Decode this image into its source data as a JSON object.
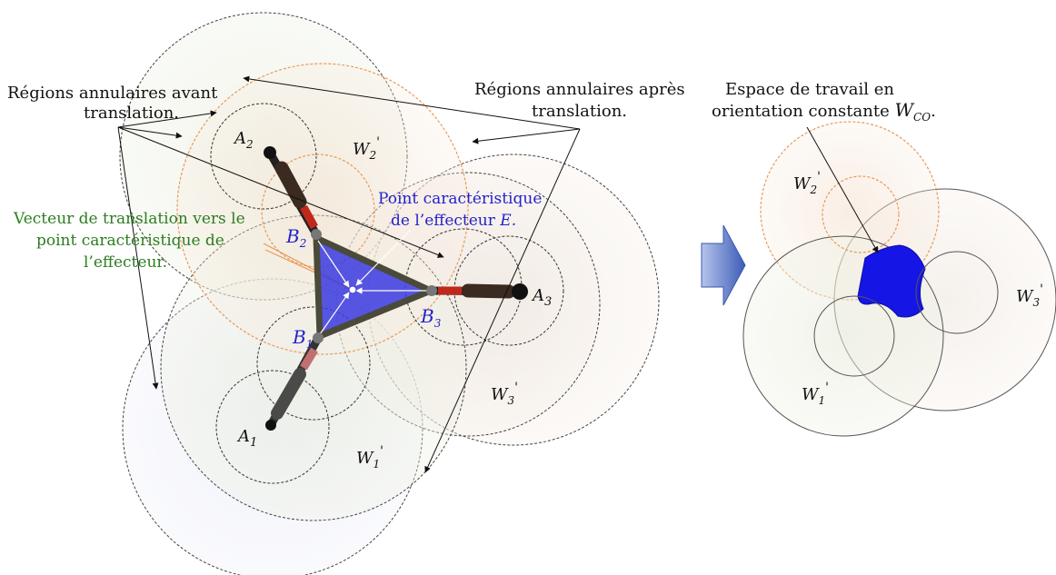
{
  "annotations": {
    "before_line1": "Régions annulaires avant",
    "before_line2": "translation.",
    "after_line1": "Régions annulaires après",
    "after_line2": "translation.",
    "workspace_line1": "Espace de travail en",
    "workspace_line2": "orientation constante",
    "workspace_symbol": "W",
    "workspace_sub": "CO",
    "workspace_end": ".",
    "vector_line1": "Vecteur de translation vers le",
    "vector_line2": "point caractéristique  de",
    "vector_line3": "l’effecteur.",
    "point_line1": "Point caractéristique",
    "point_line2": "de l’effecteur",
    "point_symbol": "E."
  },
  "labels": {
    "A": "A",
    "B": "B",
    "W": "W",
    "prime": "'",
    "sub1": "1",
    "sub2": "2",
    "sub3": "3"
  },
  "colors": {
    "text": "#111111",
    "green_text": "#2b7d1f",
    "blue_text": "#2222cc",
    "workspace_fill": "#1515e6",
    "orange_circle": "#e89a5a",
    "dark_circle": "#333333",
    "platform_fill": "#3333dd",
    "arrow_blue": "#5a78c8"
  }
}
